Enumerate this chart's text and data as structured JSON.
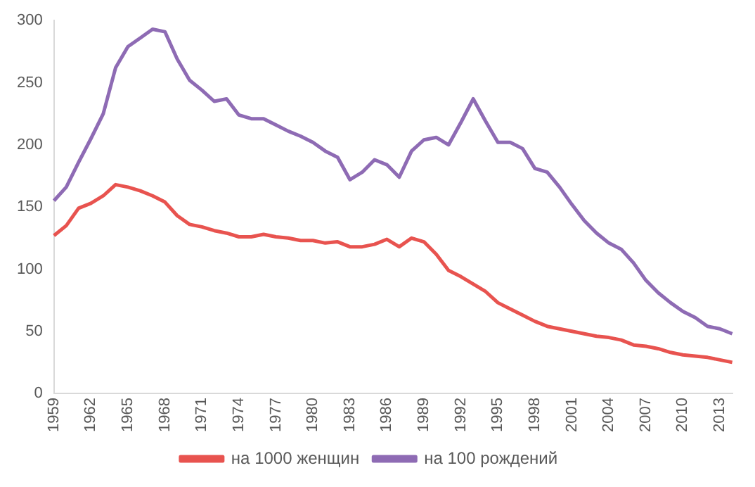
{
  "chart_data": {
    "type": "line",
    "categories": [
      "1959",
      null,
      null,
      "1962",
      null,
      null,
      "1965",
      null,
      null,
      "1968",
      null,
      null,
      "1971",
      null,
      null,
      "1974",
      null,
      null,
      "1977",
      null,
      null,
      "1980",
      null,
      null,
      "1983",
      null,
      null,
      "1986",
      null,
      null,
      "1989",
      null,
      null,
      "1992",
      null,
      null,
      "1995",
      null,
      null,
      "1998",
      null,
      null,
      "2001",
      null,
      null,
      "2004",
      null,
      null,
      "2007",
      null,
      null,
      "2010",
      null,
      null,
      "2013",
      null
    ],
    "series": [
      {
        "name": "на 1000 женщин",
        "color": "#e8534f",
        "values": [
          127,
          135,
          149,
          153,
          159,
          168,
          166,
          163,
          159,
          154,
          143,
          136,
          134,
          131,
          129,
          126,
          126,
          128,
          126,
          125,
          123,
          123,
          121,
          122,
          118,
          118,
          120,
          124,
          118,
          125,
          122,
          112,
          99,
          94,
          88,
          82,
          73,
          68,
          63,
          58,
          54,
          52,
          50,
          48,
          46,
          45,
          43,
          39,
          38,
          36,
          33,
          31,
          30,
          29,
          27,
          25
        ]
      },
      {
        "name": "на 100 рождений",
        "color": "#8e6bb4",
        "values": [
          155,
          166,
          186,
          205,
          225,
          262,
          279,
          286,
          293,
          291,
          269,
          252,
          244,
          235,
          237,
          224,
          221,
          221,
          216,
          211,
          207,
          202,
          195,
          190,
          172,
          178,
          188,
          184,
          174,
          195,
          204,
          206,
          200,
          218,
          237,
          219,
          202,
          202,
          197,
          181,
          178,
          166,
          152,
          139,
          129,
          121,
          116,
          105,
          91,
          81,
          73,
          66,
          61,
          54,
          52,
          48
        ]
      }
    ],
    "ylim": [
      0,
      300
    ],
    "yticks": [
      0,
      50,
      100,
      150,
      200,
      250,
      300
    ],
    "grid": false,
    "legend": "bottom",
    "marker": "none",
    "line_style": "solid"
  }
}
